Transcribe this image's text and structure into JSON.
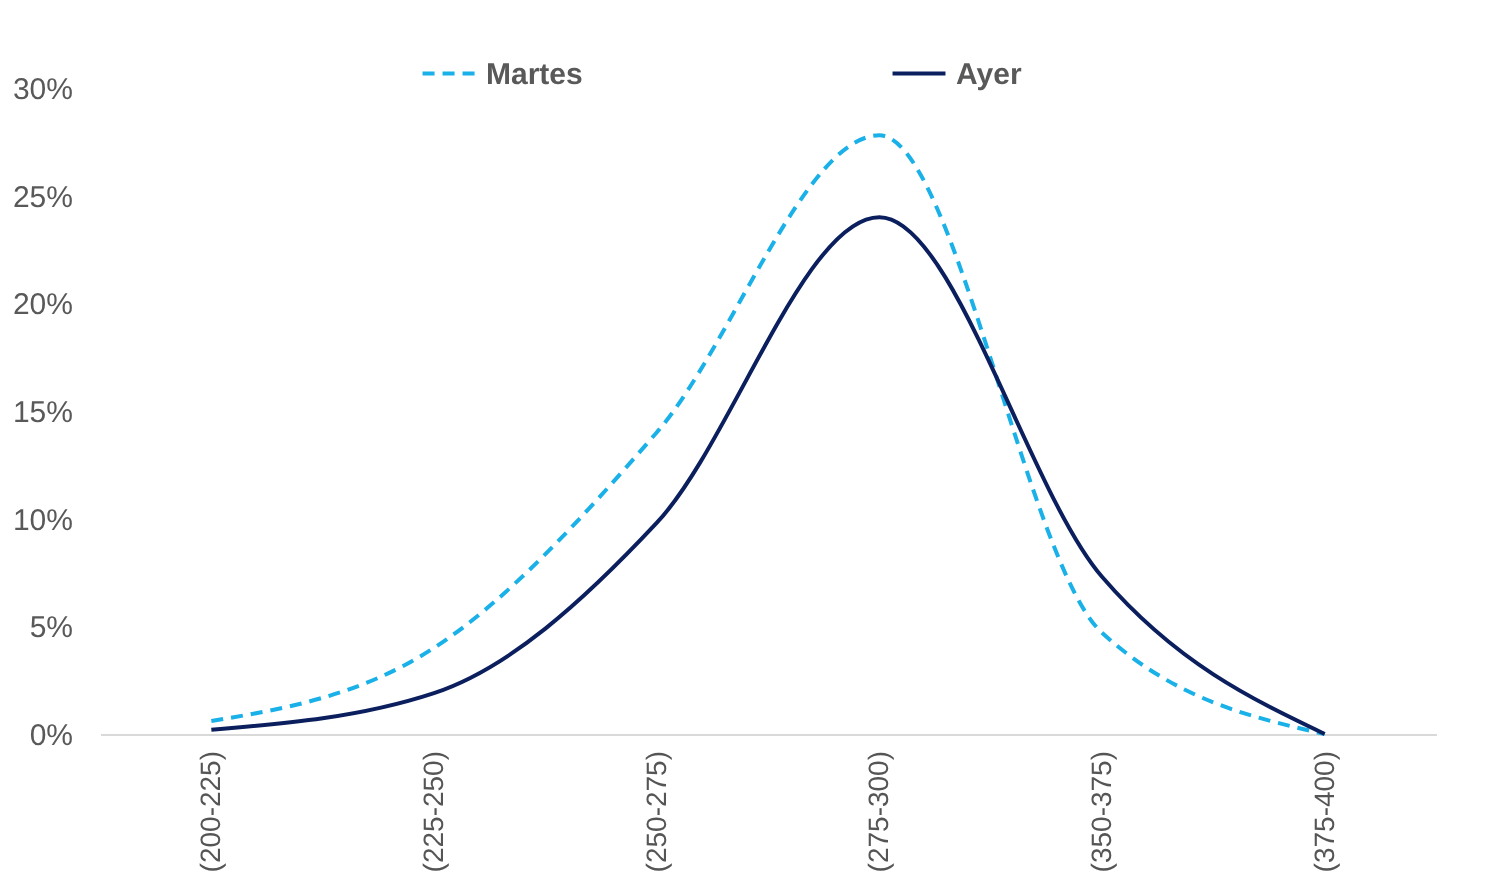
{
  "chart_data": {
    "type": "line",
    "categories": [
      "(200-225)",
      "(225-250)",
      "(250-275)",
      "(275-300)",
      "(350-375)",
      "(375-400)"
    ],
    "series": [
      {
        "name": "Martes",
        "color": "#1ab0e8",
        "line_style": "dashed",
        "values": [
          0.6,
          4.0,
          14,
          27.8,
          4.7,
          0
        ]
      },
      {
        "name": "Ayer",
        "color": "#0b1f5e",
        "line_style": "solid",
        "values": [
          0.2,
          1.9,
          9.8,
          24,
          7.3,
          0
        ]
      }
    ],
    "ylim": [
      0,
      30
    ],
    "yticks": [
      {
        "value": 0,
        "label": "0%"
      },
      {
        "value": 5,
        "label": "5%"
      },
      {
        "value": 10,
        "label": "10%"
      },
      {
        "value": 15,
        "label": "15%"
      },
      {
        "value": 20,
        "label": "20%"
      },
      {
        "value": 25,
        "label": "25%"
      },
      {
        "value": 30,
        "label": "30%"
      }
    ],
    "grid": false,
    "legend": "top",
    "marker": "none"
  }
}
